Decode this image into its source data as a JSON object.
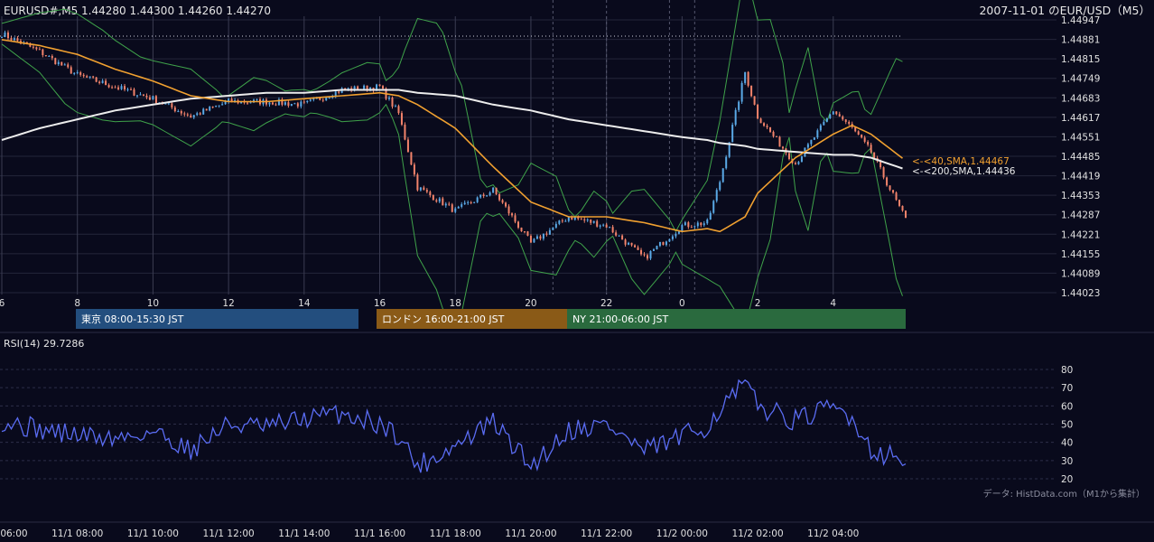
{
  "header": {
    "ohlc_label": "EURUSD#,M5 1.44280 1.44300 1.44260 1.44270",
    "title": "2007-11-01 のEUR/USD（M5）"
  },
  "colors": {
    "background": "#090a1c",
    "up_candle": "#5aa9e6",
    "down_candle": "#f2836b",
    "sma40": "#f0a030",
    "sma200": "#ececec",
    "bollinger": "#3fa24a",
    "rsi": "#5a6cf2",
    "grid": "#24263a",
    "session_tokyo": "#234e7e",
    "session_london": "#8a5a17",
    "session_ny": "#2a6a3e"
  },
  "price_panel": {
    "y_ticks": [
      "1.44947",
      "1.44881",
      "1.44815",
      "1.44749",
      "1.44683",
      "1.44617",
      "1.44551",
      "1.44485",
      "1.44419",
      "1.44353",
      "1.44287",
      "1.44221",
      "1.44155",
      "1.44089",
      "1.44023"
    ],
    "x_ticks": [
      "6",
      "8",
      "10",
      "12",
      "14",
      "16",
      "18",
      "20",
      "22",
      "0",
      "2",
      "4"
    ],
    "sma40_label": "<-<40,SMA,1.44467",
    "sma200_label": "<-<200,SMA,1.44436"
  },
  "sessions": [
    {
      "label": "東京 08:00-15:30 JST",
      "name": "tokyo"
    },
    {
      "label": "ロンドン 16:00-21:00 JST",
      "name": "london"
    },
    {
      "label": "NY 21:00-06:00 JST",
      "name": "ny"
    }
  ],
  "rsi_panel": {
    "label": "RSI(14) 29.7286",
    "y_ticks": [
      "80",
      "70",
      "60",
      "50",
      "40",
      "30",
      "20"
    ]
  },
  "bottom_axis": {
    "x_ticks": [
      "11/1 06:00",
      "11/1 08:00",
      "11/1 10:00",
      "11/1 12:00",
      "11/1 14:00",
      "11/1 16:00",
      "11/1 18:00",
      "11/1 20:00",
      "11/1 22:00",
      "11/2 00:00",
      "11/2 02:00",
      "11/2 04:00"
    ]
  },
  "source_note": "データ: HistData.com（M1から集計）",
  "chart_data": {
    "type": "line",
    "x": [
      "11/1 06:00",
      "11/1 07:00",
      "11/1 08:00",
      "11/1 09:00",
      "11/1 10:00",
      "11/1 11:00",
      "11/1 12:00",
      "11/1 13:00",
      "11/1 14:00",
      "11/1 15:00",
      "11/1 16:00",
      "11/1 16:30",
      "11/1 17:00",
      "11/1 18:00",
      "11/1 19:00",
      "11/1 20:00",
      "11/1 21:00",
      "11/1 22:00",
      "11/1 23:00",
      "11/2 00:00",
      "11/2 00:40",
      "11/2 01:00",
      "11/2 01:40",
      "11/2 02:00",
      "11/2 03:00",
      "11/2 04:00",
      "11/2 04:30",
      "11/2 05:00",
      "11/2 05:55"
    ],
    "series": [
      {
        "name": "SMA40",
        "values": [
          1.4488,
          1.4486,
          1.4483,
          1.4478,
          1.4474,
          1.4469,
          1.4467,
          1.4467,
          1.4468,
          1.4469,
          1.447,
          1.4469,
          1.4466,
          1.4458,
          1.4445,
          1.4433,
          1.4428,
          1.4428,
          1.4426,
          1.4423,
          1.4424,
          1.4423,
          1.4428,
          1.4436,
          1.4448,
          1.4456,
          1.4459,
          1.4456,
          1.4447
        ]
      },
      {
        "name": "SMA200",
        "values": [
          1.4454,
          1.4458,
          1.4461,
          1.4464,
          1.4466,
          1.4468,
          1.4469,
          1.447,
          1.447,
          1.4471,
          1.4471,
          1.4471,
          1.447,
          1.4469,
          1.4466,
          1.4464,
          1.4461,
          1.4459,
          1.4457,
          1.4455,
          1.4454,
          1.4453,
          1.4452,
          1.4451,
          1.445,
          1.4449,
          1.4449,
          1.4448,
          1.4444
        ]
      }
    ],
    "close": [
      1.449,
      1.4484,
      1.4476,
      1.4472,
      1.4468,
      1.4462,
      1.4467,
      1.4467,
      1.4466,
      1.4471,
      1.4472,
      1.4463,
      1.4438,
      1.443,
      1.4437,
      1.4419,
      1.4428,
      1.4425,
      1.4414,
      1.4425,
      1.4426,
      1.444,
      1.4477,
      1.4462,
      1.4446,
      1.4464,
      1.4458,
      1.445,
      1.4427
    ],
    "rsi": [
      52,
      47,
      44,
      42,
      46,
      36,
      50,
      48,
      53,
      56,
      50,
      44,
      27,
      38,
      51,
      27,
      47,
      50,
      35,
      43,
      49,
      58,
      72,
      60,
      52,
      59,
      54,
      36,
      30
    ],
    "ylim": [
      1.44023,
      1.44947
    ],
    "rsi_ylim": [
      20,
      80
    ]
  }
}
